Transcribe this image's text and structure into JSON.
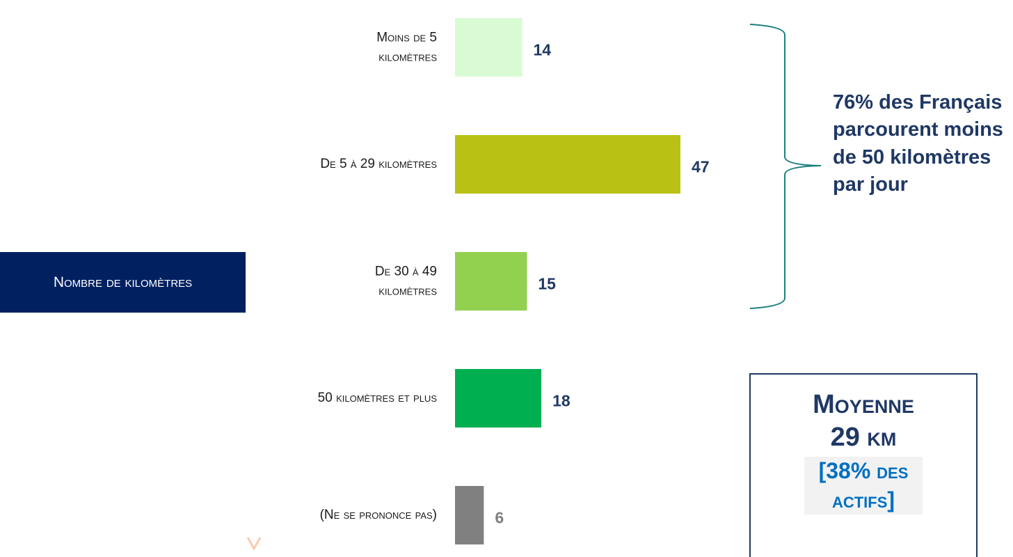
{
  "chart_data": {
    "type": "bar",
    "orientation": "horizontal",
    "axis_label": "Nombre de kilomètres",
    "categories": [
      "Moins de 5 kilomètres",
      "De 5 à 29 kilomètres",
      "De 30 à 49 kilomètres",
      "50 kilomètres et plus",
      "(Ne se prononce pas)"
    ],
    "values": [
      14,
      47,
      15,
      18,
      6
    ],
    "colors": [
      "#d9fbd3",
      "#b9c214",
      "#92d050",
      "#00b050",
      "#808080"
    ],
    "label_colors": [
      "#1f3864",
      "#1f3864",
      "#1f3864",
      "#1f3864",
      "#808080"
    ],
    "annotation": "76% des Français parcourent moins de 50 kilomètres par jour",
    "callout": {
      "title": "Moyenne",
      "value": "29 km",
      "note": "[38% des actifs]"
    }
  }
}
